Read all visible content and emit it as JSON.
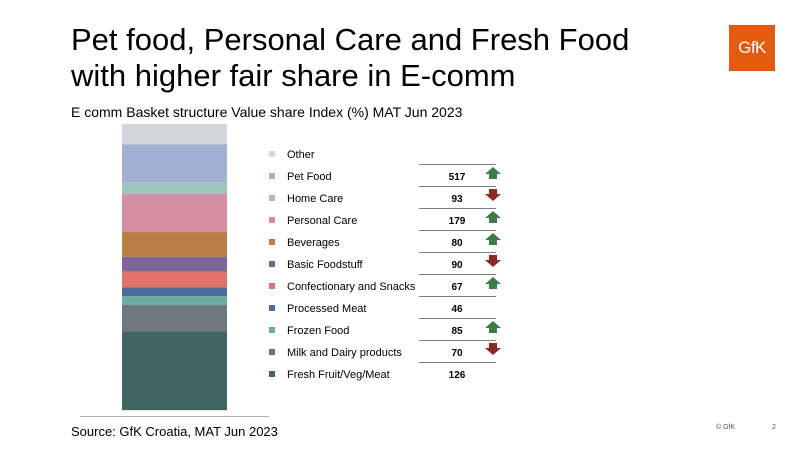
{
  "slide": {
    "title_line1": "Pet food, Personal Care and Fresh Food",
    "title_line2": "with higher fair share in E-comm",
    "subtitle": "E comm Basket structure Value share Index (%) MAT Jun 2023",
    "source": "Source: GfK Croatia, MAT Jun 2023",
    "copyright": "© GfK",
    "page_number": "2",
    "logo_text": "GfK",
    "logo_color": "#e55a0e"
  },
  "colors": {
    "arrow_up": "#3d7d4a",
    "arrow_down": "#8b2a22"
  },
  "chart_data": {
    "type": "bar",
    "stacked": true,
    "ylim": [
      0,
      100
    ],
    "unit": "%",
    "series": [
      {
        "name": "Other",
        "share": 7,
        "index": "",
        "trend": "",
        "color": "#d3d7db"
      },
      {
        "name": "Pet Food",
        "share": 13,
        "index": "517",
        "trend": "up",
        "color": "#a2afd1"
      },
      {
        "name": "Home Care",
        "share": 4,
        "index": "93",
        "trend": "down",
        "color": "#9ec4c0"
      },
      {
        "name": "Personal Care",
        "share": 13,
        "index": "179",
        "trend": "up",
        "color": "#d58ea2"
      },
      {
        "name": "Beverages",
        "share": 8.5,
        "index": "80",
        "trend": "up",
        "color": "#b97d45"
      },
      {
        "name": "Basic Foodstuff",
        "share": 5,
        "index": "90",
        "trend": "down",
        "color": "#80659b"
      },
      {
        "name": "Confectionary and Snacks",
        "share": 5.5,
        "index": "67",
        "trend": "up",
        "color": "#e07468"
      },
      {
        "name": "Processed Meat",
        "share": 3,
        "index": "46",
        "trend": "",
        "color": "#4f6a9c"
      },
      {
        "name": "Frozen Food",
        "share": 3,
        "index": "85",
        "trend": "up",
        "color": "#6daca0"
      },
      {
        "name": "Milk and Dairy products",
        "share": 9,
        "index": "70",
        "trend": "down",
        "color": "#6e777c"
      },
      {
        "name": "Fresh Fruit/Veg/Meat",
        "share": 27,
        "index": "126",
        "trend": "",
        "color": "#3f6462"
      }
    ]
  }
}
